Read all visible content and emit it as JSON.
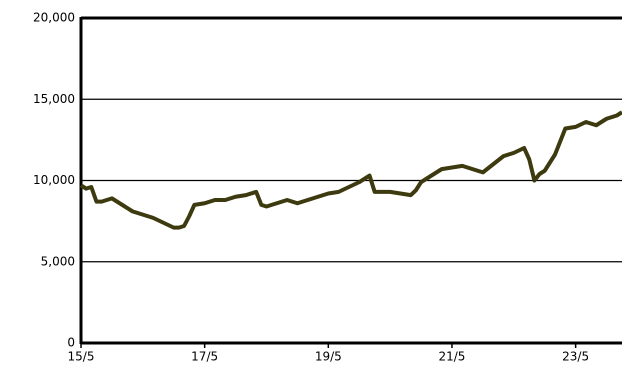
{
  "chart_data": {
    "type": "line",
    "color": "#3d3a10",
    "x": [
      0,
      1,
      2,
      3,
      4,
      6,
      8,
      10,
      12,
      14,
      16,
      18,
      19,
      20,
      21,
      22,
      24,
      26,
      28,
      30,
      32,
      34,
      35,
      36,
      38,
      40,
      42,
      44,
      46,
      48,
      50,
      52,
      54,
      56,
      57,
      58,
      60,
      62,
      64,
      65,
      66,
      68,
      70,
      72,
      74,
      76,
      78,
      80,
      82,
      84,
      86,
      87,
      88,
      89,
      90,
      92,
      94,
      96,
      98,
      100,
      102,
      104,
      105
    ],
    "values": [
      9700,
      9500,
      9600,
      8700,
      8700,
      8900,
      8500,
      8100,
      7900,
      7700,
      7400,
      7100,
      7100,
      7200,
      7800,
      8500,
      8600,
      8800,
      8800,
      9000,
      9100,
      9300,
      8500,
      8400,
      8600,
      8800,
      8600,
      8800,
      9000,
      9200,
      9300,
      9600,
      9900,
      10300,
      9300,
      9300,
      9300,
      9200,
      9100,
      9400,
      9900,
      10300,
      10700,
      10800,
      10900,
      10700,
      10500,
      11000,
      11500,
      11700,
      12000,
      11300,
      10000,
      10400,
      10600,
      11600,
      13200,
      13300,
      13600,
      13400,
      13800,
      14000,
      14200
    ],
    "xlim": [
      0,
      105
    ],
    "xticks": [
      {
        "value": 0,
        "label": "15/5"
      },
      {
        "value": 24,
        "label": "17/5"
      },
      {
        "value": 48,
        "label": "19/5"
      },
      {
        "value": 72,
        "label": "21/5"
      },
      {
        "value": 96,
        "label": "23/5"
      }
    ],
    "ylim": [
      0,
      20000
    ],
    "yticks": [
      0,
      {
        "value": 5000,
        "label": "5,000"
      },
      {
        "value": 10000,
        "label": "10,000"
      },
      {
        "value": 15000,
        "label": "15,000"
      },
      {
        "value": 20000,
        "label": "20,000"
      }
    ],
    "grid": true
  }
}
